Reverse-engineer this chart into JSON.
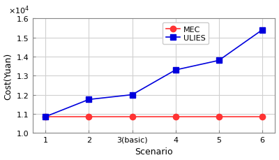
{
  "x": [
    1,
    2,
    3,
    4,
    5,
    6
  ],
  "x_labels": [
    "1",
    "2",
    "3(basic)",
    "4",
    "5",
    "6"
  ],
  "mec_values": [
    10850,
    10850,
    10850,
    10850,
    10850,
    10850
  ],
  "ulies_values": [
    10850,
    11750,
    12000,
    13300,
    13800,
    15400
  ],
  "mec_color": "#ff3333",
  "ulies_color": "#0000dd",
  "mec_label": "MEC",
  "ulies_label": "ULIES",
  "xlabel": "Scenario",
  "ylabel": "Cost(Yuan)",
  "ylim": [
    10000,
    16000
  ],
  "yticks": [
    10000,
    11000,
    12000,
    13000,
    14000,
    15000,
    16000
  ],
  "grid_color": "#d0d0d0",
  "background_color": "#ffffff",
  "axis_color": "#888888",
  "exponent_label": "×10⁴",
  "marker_size": 6,
  "line_width": 1.2
}
